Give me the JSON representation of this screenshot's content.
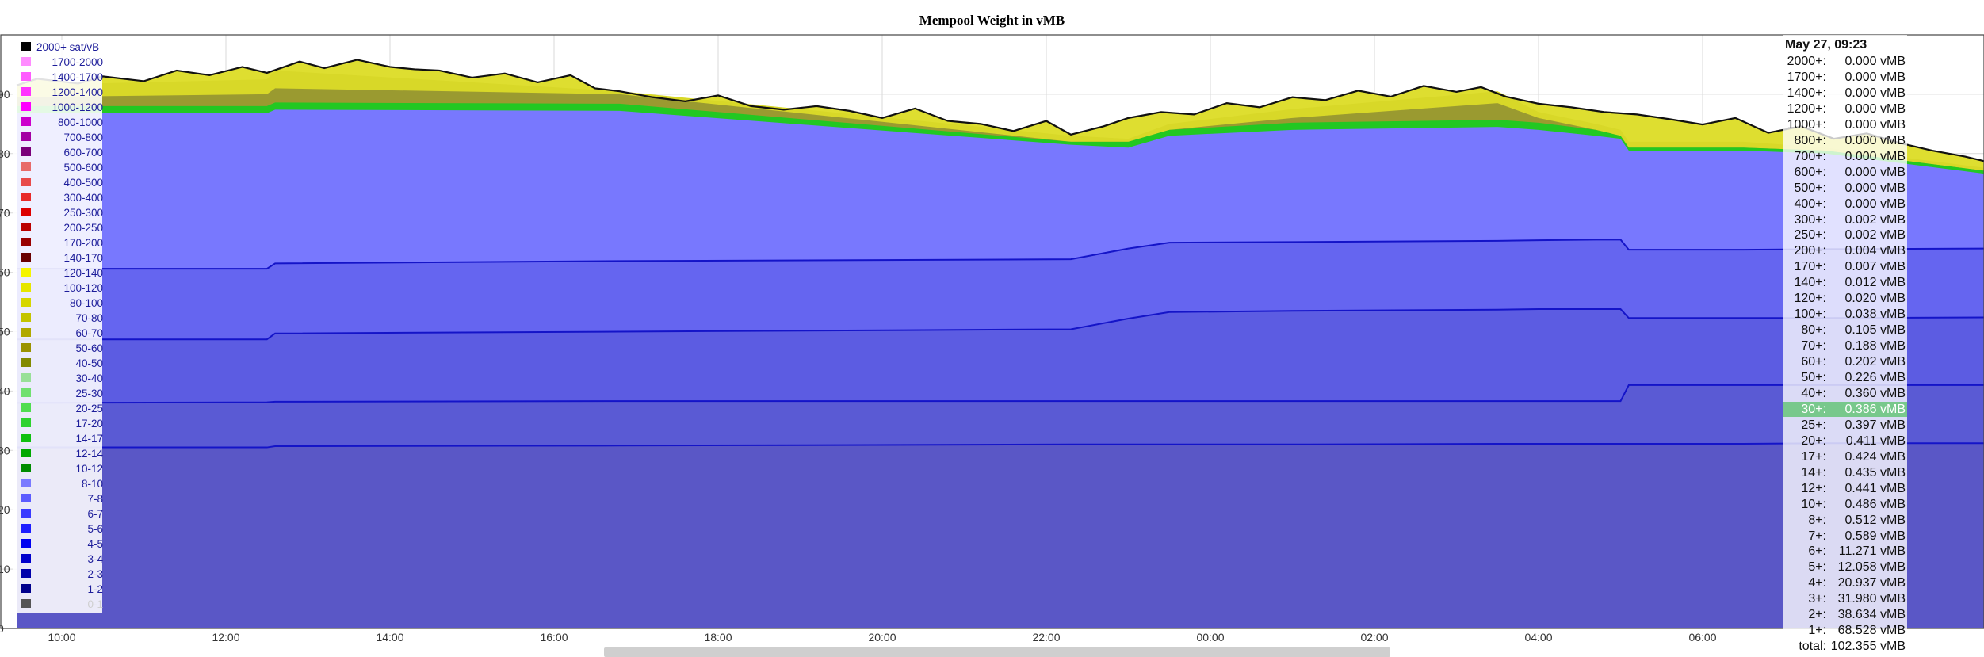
{
  "chart_data": {
    "type": "area",
    "title": "Mempool Weight in vMB",
    "xlabel": "",
    "ylabel": "",
    "x_ticks": [
      "10:00",
      "12:00",
      "14:00",
      "16:00",
      "18:00",
      "20:00",
      "22:00",
      "00:00",
      "02:00",
      "04:00",
      "06:00"
    ],
    "y_ticks": [
      "0",
      "10",
      "20",
      "30",
      "40",
      "50",
      "60",
      "70",
      "80",
      "90"
    ],
    "ylim": [
      0,
      100
    ],
    "grid": true,
    "legend_position": "left",
    "x_hours": [
      9.45,
      12.5,
      12.6,
      16.8,
      22.3,
      23.0,
      23.5,
      25.0,
      27.5,
      28.0,
      28.7,
      29.0,
      29.1,
      30.5,
      31.5,
      33.5
    ],
    "layers": [
      {
        "name": "1-2 total",
        "values": [
          30.5,
          30.5,
          30.7,
          30.8,
          31.0,
          31.0,
          31.0,
          31.0,
          31.1,
          31.1,
          31.1,
          31.1,
          31.1,
          31.1,
          31.2,
          31.2
        ]
      },
      {
        "name": "2-3 total",
        "values": [
          38.0,
          38.1,
          38.2,
          38.3,
          38.3,
          38.3,
          38.3,
          38.3,
          38.3,
          38.3,
          38.3,
          38.3,
          41.0,
          41.0,
          41.0,
          41.0
        ]
      },
      {
        "name": "3-4 total",
        "values": [
          48.7,
          48.7,
          49.7,
          50.0,
          50.4,
          52.2,
          53.3,
          53.5,
          53.7,
          53.8,
          53.8,
          53.8,
          52.3,
          52.3,
          52.3,
          52.4
        ]
      },
      {
        "name": "5-6 total",
        "values": [
          60.6,
          60.6,
          61.5,
          61.9,
          62.2,
          64.0,
          65.0,
          65.1,
          65.3,
          65.4,
          65.5,
          65.5,
          63.8,
          63.8,
          63.9,
          64.0
        ]
      },
      {
        "name": "8-10 total",
        "values": [
          86.8,
          86.8,
          87.4,
          87.2,
          81.5,
          81.0,
          83.0,
          84.0,
          84.5,
          84.0,
          83.0,
          82.5,
          80.5,
          80.5,
          80.0,
          76.5
        ]
      },
      {
        "name": "40-50 total",
        "values": [
          89.5,
          90.0,
          91.0,
          90.0,
          82.0,
          82.0,
          84.0,
          86.0,
          88.5,
          86.0,
          84.0,
          83.0,
          81.0,
          81.0,
          80.5,
          77.0
        ]
      },
      {
        "name": "70-80 total",
        "values": [
          91.5,
          92.5,
          94.0,
          90.5,
          83.0,
          82.5,
          85.0,
          87.5,
          90.5,
          87.0,
          85.0,
          84.0,
          82.0,
          82.0,
          81.0,
          77.5
        ]
      }
    ],
    "peak_line": {
      "x": [
        9.45,
        9.7,
        10.2,
        10.5,
        11.0,
        11.4,
        11.8,
        12.2,
        12.5,
        12.9,
        13.2,
        13.6,
        14.0,
        14.3,
        14.6,
        15.0,
        15.4,
        15.8,
        16.2,
        16.5,
        16.8,
        17.2,
        17.6,
        18.0,
        18.4,
        18.8,
        19.2,
        19.6,
        20.0,
        20.4,
        20.8,
        21.2,
        21.6,
        22.0,
        22.3,
        22.7,
        23.0,
        23.4,
        23.8,
        24.2,
        24.6,
        25.0,
        25.4,
        25.8,
        26.2,
        26.6,
        27.0,
        27.3,
        27.6,
        28.0,
        28.4,
        28.8,
        29.2,
        29.6,
        30.0,
        30.4,
        30.8,
        31.2,
        31.6,
        32.0,
        32.4,
        32.8,
        33.2,
        33.5
      ],
      "y": [
        91.5,
        92.6,
        91.8,
        93.0,
        92.2,
        94.0,
        93.2,
        94.6,
        93.6,
        95.5,
        94.4,
        95.8,
        94.6,
        94.2,
        94.0,
        92.8,
        93.5,
        92.0,
        93.2,
        91.0,
        90.5,
        89.5,
        88.8,
        89.8,
        88.0,
        87.4,
        88.0,
        87.2,
        86.0,
        87.6,
        85.5,
        85.0,
        83.8,
        85.5,
        83.2,
        84.6,
        86.0,
        87.0,
        86.6,
        88.5,
        87.8,
        89.5,
        89.0,
        90.6,
        89.6,
        91.4,
        90.4,
        91.2,
        89.6,
        88.4,
        87.8,
        87.0,
        86.6,
        85.8,
        84.9,
        86.0,
        83.5,
        84.6,
        82.5,
        83.4,
        81.8,
        80.5,
        79.5,
        78.5
      ]
    },
    "series": [
      {
        "name": "2000+ sat/vB",
        "color": "#000000"
      },
      {
        "name": "1700-2000",
        "color": "#ff8cff"
      },
      {
        "name": "1400-1700",
        "color": "#ff5cff"
      },
      {
        "name": "1200-1400",
        "color": "#ff33ff"
      },
      {
        "name": "1000-1200",
        "color": "#ff00ff"
      },
      {
        "name": "800-1000",
        "color": "#cc00cc"
      },
      {
        "name": "700-800",
        "color": "#a300a3"
      },
      {
        "name": "600-700",
        "color": "#7a007a"
      },
      {
        "name": "500-600",
        "color": "#e86a6a"
      },
      {
        "name": "400-500",
        "color": "#e84a4a"
      },
      {
        "name": "300-400",
        "color": "#e82a2a"
      },
      {
        "name": "250-300",
        "color": "#dd0000"
      },
      {
        "name": "200-250",
        "color": "#bb0000"
      },
      {
        "name": "170-200",
        "color": "#990000"
      },
      {
        "name": "140-170",
        "color": "#6a0000"
      },
      {
        "name": "120-140",
        "color": "#f5f500"
      },
      {
        "name": "100-120",
        "color": "#e6e600"
      },
      {
        "name": "80-100",
        "color": "#d6d600"
      },
      {
        "name": "70-80",
        "color": "#c4c400"
      },
      {
        "name": "60-70",
        "color": "#b0a800"
      },
      {
        "name": "50-60",
        "color": "#9a9200"
      },
      {
        "name": "40-50",
        "color": "#828a00"
      },
      {
        "name": "30-40",
        "color": "#98e098"
      },
      {
        "name": "25-30",
        "color": "#70e070"
      },
      {
        "name": "20-25",
        "color": "#50dd50"
      },
      {
        "name": "17-20",
        "color": "#2ed22e"
      },
      {
        "name": "14-17",
        "color": "#10c010"
      },
      {
        "name": "12-14",
        "color": "#00a800"
      },
      {
        "name": "10-12",
        "color": "#008c00"
      },
      {
        "name": "8-10",
        "color": "#7a7aff"
      },
      {
        "name": "7-8",
        "color": "#5c5cff"
      },
      {
        "name": "6-7",
        "color": "#3a3aff"
      },
      {
        "name": "5-6",
        "color": "#1e1eff"
      },
      {
        "name": "4-5",
        "color": "#0000f0"
      },
      {
        "name": "3-4",
        "color": "#0000cc"
      },
      {
        "name": "2-3",
        "color": "#0000aa"
      },
      {
        "name": "1-2",
        "color": "#00008c"
      },
      {
        "name": "0-1",
        "color": "#555555"
      }
    ]
  },
  "tooltip": {
    "date": "May 27, 09:23",
    "highlight_color": "#78c88c",
    "rows": [
      {
        "label": "2000+:",
        "value": "0.000 vMB"
      },
      {
        "label": "1700+:",
        "value": "0.000 vMB"
      },
      {
        "label": "1400+:",
        "value": "0.000 vMB"
      },
      {
        "label": "1200+:",
        "value": "0.000 vMB"
      },
      {
        "label": "1000+:",
        "value": "0.000 vMB"
      },
      {
        "label": "800+:",
        "value": "0.000 vMB"
      },
      {
        "label": "700+:",
        "value": "0.000 vMB"
      },
      {
        "label": "600+:",
        "value": "0.000 vMB"
      },
      {
        "label": "500+:",
        "value": "0.000 vMB"
      },
      {
        "label": "400+:",
        "value": "0.000 vMB"
      },
      {
        "label": "300+:",
        "value": "0.002 vMB"
      },
      {
        "label": "250+:",
        "value": "0.002 vMB"
      },
      {
        "label": "200+:",
        "value": "0.004 vMB"
      },
      {
        "label": "170+:",
        "value": "0.007 vMB"
      },
      {
        "label": "140+:",
        "value": "0.012 vMB"
      },
      {
        "label": "120+:",
        "value": "0.020 vMB"
      },
      {
        "label": "100+:",
        "value": "0.038 vMB"
      },
      {
        "label": "80+:",
        "value": "0.105 vMB"
      },
      {
        "label": "70+:",
        "value": "0.188 vMB"
      },
      {
        "label": "60+:",
        "value": "0.202 vMB"
      },
      {
        "label": "50+:",
        "value": "0.226 vMB"
      },
      {
        "label": "40+:",
        "value": "0.360 vMB"
      },
      {
        "label": "30+:",
        "value": "0.386 vMB",
        "highlight": true
      },
      {
        "label": "25+:",
        "value": "0.397 vMB"
      },
      {
        "label": "20+:",
        "value": "0.411 vMB"
      },
      {
        "label": "17+:",
        "value": "0.424 vMB"
      },
      {
        "label": "14+:",
        "value": "0.435 vMB"
      },
      {
        "label": "12+:",
        "value": "0.441 vMB"
      },
      {
        "label": "10+:",
        "value": "0.486 vMB"
      },
      {
        "label": "8+:",
        "value": "0.512 vMB"
      },
      {
        "label": "7+:",
        "value": "0.589 vMB"
      },
      {
        "label": "6+:",
        "value": "11.271 vMB"
      },
      {
        "label": "5+:",
        "value": "12.058 vMB"
      },
      {
        "label": "4+:",
        "value": "20.937 vMB"
      },
      {
        "label": "3+:",
        "value": "31.980 vMB"
      },
      {
        "label": "2+:",
        "value": "38.634 vMB"
      },
      {
        "label": "1+:",
        "value": "68.528 vMB"
      },
      {
        "label": "total:",
        "value": "102.355 vMB"
      }
    ]
  }
}
